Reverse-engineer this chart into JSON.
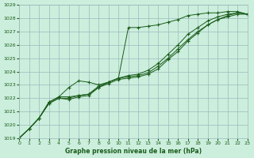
{
  "title": "Graphe pression niveau de la mer (hPa)",
  "background_color": "#cceedd",
  "grid_color": "#99bbbb",
  "line_color": "#1a5c1a",
  "xlim": [
    0,
    23
  ],
  "ylim": [
    1019,
    1029
  ],
  "xticks": [
    0,
    1,
    2,
    3,
    4,
    5,
    6,
    7,
    8,
    9,
    10,
    11,
    12,
    13,
    14,
    15,
    16,
    17,
    18,
    19,
    20,
    21,
    22,
    23
  ],
  "yticks": [
    1019,
    1020,
    1021,
    1022,
    1023,
    1024,
    1025,
    1026,
    1027,
    1028,
    1029
  ],
  "series": [
    [
      1019.0,
      1019.7,
      1020.5,
      1021.7,
      1022.1,
      1022.1,
      1022.2,
      1022.3,
      1022.8,
      1023.2,
      1023.5,
      1027.3,
      1027.3,
      1027.4,
      1027.5,
      1027.7,
      1027.9,
      1028.2,
      1028.3,
      1028.4,
      1028.4,
      1028.5,
      1028.5,
      1028.3
    ],
    [
      1019.0,
      1019.7,
      1020.5,
      1021.6,
      1022.0,
      1022.0,
      1022.2,
      1022.3,
      1022.9,
      1023.2,
      1023.5,
      1023.6,
      1023.7,
      1023.9,
      1024.4,
      1025.0,
      1025.7,
      1026.4,
      1027.0,
      1027.5,
      1027.9,
      1028.2,
      1028.4,
      1028.3
    ],
    [
      1019.0,
      1019.7,
      1020.5,
      1021.6,
      1022.0,
      1021.9,
      1022.1,
      1022.2,
      1022.8,
      1023.1,
      1023.4,
      1023.5,
      1023.6,
      1023.8,
      1024.2,
      1024.9,
      1025.5,
      1026.3,
      1026.9,
      1027.5,
      1027.9,
      1028.1,
      1028.3,
      1028.3
    ],
    [
      1019.0,
      1019.7,
      1020.5,
      1021.7,
      1022.1,
      1022.8,
      1023.3,
      1023.2,
      1023.0,
      1023.2,
      1023.5,
      1023.7,
      1023.8,
      1024.1,
      1024.6,
      1025.3,
      1026.0,
      1026.8,
      1027.3,
      1027.8,
      1028.1,
      1028.3,
      1028.4,
      1028.3
    ]
  ]
}
